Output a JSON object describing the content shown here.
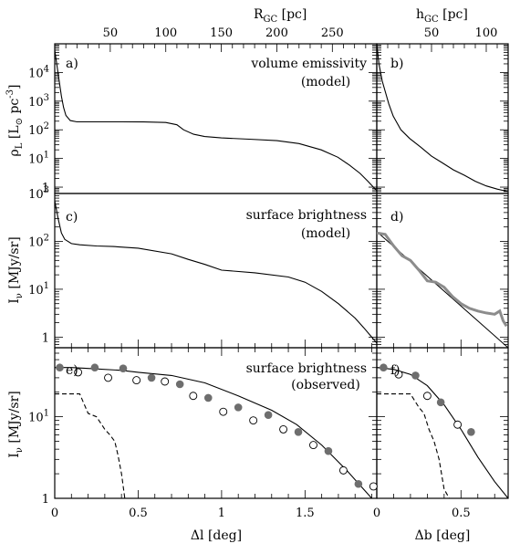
{
  "colors": {
    "line": "#000000",
    "model_gray": "#8c8c8c",
    "filled_marker": "#6e6e6e",
    "open_marker": "#ffffff"
  },
  "chart_data": [
    {
      "panel": "a",
      "type": "line",
      "title": "volume emissivity",
      "subtitle": "(model)",
      "ylabel": "ρL [L⊙ pc⁻³]",
      "yscale": "log",
      "ylim": [
        0.6,
        100000
      ],
      "yticks": [
        1,
        10,
        100,
        1000,
        10000
      ],
      "yticklabels": [
        "1",
        "10¹",
        "10²",
        "10³",
        "10⁴"
      ],
      "xlabel_top": "RGC [pc]",
      "xlim_top": [
        0,
        290
      ],
      "xticks_top": [
        50,
        100,
        150,
        200,
        250
      ],
      "series": [
        {
          "x": [
            0.0,
            2,
            4,
            6,
            8,
            10,
            14,
            20,
            30,
            40,
            60,
            80,
            100,
            110,
            116,
            125,
            135,
            150,
            175,
            200,
            220,
            240,
            255,
            265,
            275,
            282,
            290
          ],
          "y": [
            60000,
            18000,
            5000,
            1500,
            600,
            320,
            210,
            190,
            190,
            190,
            190,
            188,
            180,
            150,
            100,
            70,
            58,
            52,
            47,
            42,
            33,
            20,
            11,
            6,
            3,
            1.6,
            0.75
          ]
        }
      ]
    },
    {
      "panel": "b",
      "type": "line",
      "yscale": "log",
      "ylim": [
        0.6,
        100000
      ],
      "xlabel_top": "hGC [pc]",
      "xlim_top": [
        0,
        120
      ],
      "xticks_top": [
        50,
        100
      ],
      "series": [
        {
          "x": [
            0,
            2,
            5,
            8,
            11,
            15,
            22,
            30,
            40,
            50,
            60,
            70,
            80,
            90,
            100,
            110,
            120
          ],
          "y": [
            100000,
            20000,
            5000,
            2000,
            800,
            300,
            100,
            50,
            25,
            12,
            7,
            4,
            2.6,
            1.6,
            1.1,
            0.85,
            0.7
          ]
        }
      ]
    },
    {
      "panel": "c",
      "type": "line",
      "title": "surface brightness",
      "subtitle": "(model)",
      "ylabel": "Iν [MJy/sr]",
      "yscale": "log",
      "ylim": [
        0.6,
        1000
      ],
      "yticks": [
        1,
        10,
        100,
        1000
      ],
      "yticklabels": [
        "1",
        "10¹",
        "10²",
        "10³"
      ],
      "series": [
        {
          "x": [
            0.0,
            0.02,
            0.04,
            0.06,
            0.1,
            0.15,
            0.25,
            0.35,
            0.5,
            0.7,
            0.8,
            0.9,
            1.0,
            1.2,
            1.4,
            1.5,
            1.6,
            1.7,
            1.8,
            1.85,
            1.9,
            1.95
          ],
          "y": [
            700,
            300,
            150,
            110,
            90,
            85,
            80,
            78,
            72,
            55,
            42,
            33,
            25,
            22,
            18,
            14,
            9,
            5,
            2.5,
            1.6,
            1.0,
            0.62
          ]
        }
      ]
    },
    {
      "panel": "d",
      "type": "line",
      "yscale": "log",
      "ylim": [
        0.6,
        1000
      ],
      "series": [
        {
          "x": [
            0,
            0.78
          ],
          "y": [
            160,
            0.6
          ]
        },
        {
          "x": [
            0,
            0.05,
            0.1,
            0.15,
            0.2,
            0.25,
            0.3,
            0.35,
            0.4,
            0.45,
            0.5,
            0.55,
            0.6,
            0.65,
            0.7,
            0.73,
            0.75,
            0.77
          ],
          "y": [
            150,
            140,
            80,
            50,
            40,
            25,
            15,
            14,
            11,
            7,
            5,
            4,
            3.5,
            3.2,
            3,
            3.5,
            2.2,
            1.7
          ]
        }
      ]
    },
    {
      "panel": "e",
      "type": "scatter",
      "title": "surface brightness",
      "subtitle": "(observed)",
      "ylabel": "Iν [MJy/sr]",
      "xlabel": "Δl [deg]",
      "yscale": "log",
      "ylim": [
        1,
        70
      ],
      "yticks": [
        1,
        10
      ],
      "yticklabels": [
        "1",
        "10¹"
      ],
      "xlim": [
        0,
        1.93
      ],
      "xticks": [
        0,
        0.5,
        1,
        1.5
      ],
      "xticklabels": [
        "0",
        "0.5",
        "1",
        "1.5"
      ],
      "series": [
        {
          "x": [
            0.0,
            0.1,
            0.2,
            0.4,
            0.5,
            0.7,
            0.9,
            1.1,
            1.3,
            1.45,
            1.6,
            1.75,
            1.9
          ],
          "y": [
            40,
            40,
            39,
            37,
            35,
            32,
            26,
            18,
            12,
            8,
            4.5,
            2.2,
            1.0
          ]
        },
        {
          "x": [
            0.0,
            0.1,
            0.15,
            0.2,
            0.25,
            0.3,
            0.33,
            0.36,
            0.38,
            0.4,
            0.42,
            0.6
          ],
          "y": [
            19,
            19,
            19,
            11,
            10,
            7,
            6,
            5,
            3.3,
            2,
            1,
            1
          ]
        },
        {
          "x": [
            0.03,
            0.24,
            0.41,
            0.58,
            0.75,
            0.92,
            1.1,
            1.28,
            1.46,
            1.64,
            1.82
          ],
          "y": [
            40,
            40,
            39,
            30,
            25,
            17,
            13,
            10.5,
            6.5,
            3.8,
            1.5
          ]
        },
        {
          "x": [
            0.14,
            0.32,
            0.49,
            0.66,
            0.83,
            1.01,
            1.19,
            1.37,
            1.55,
            1.73,
            1.91
          ],
          "y": [
            35,
            30,
            28,
            27,
            18,
            11.5,
            9,
            7,
            4.5,
            2.2,
            1.4
          ]
        }
      ]
    },
    {
      "panel": "f",
      "type": "scatter",
      "xlabel": "Δb [deg]",
      "yscale": "log",
      "ylim": [
        1,
        70
      ],
      "xlim": [
        0,
        0.78
      ],
      "xticks": [
        0,
        0.5
      ],
      "xticklabels": [
        "0",
        "0.5"
      ],
      "series": [
        {
          "x": [
            0.0,
            0.1,
            0.2,
            0.3,
            0.4,
            0.5,
            0.6,
            0.7,
            0.78
          ],
          "y": [
            40,
            38,
            33,
            24,
            14,
            7,
            3.2,
            1.6,
            1.0
          ]
        },
        {
          "x": [
            0.0,
            0.14,
            0.2,
            0.25,
            0.28,
            0.31,
            0.34,
            0.37,
            0.4,
            0.43,
            0.5
          ],
          "y": [
            19,
            19,
            19,
            13,
            11,
            7,
            5,
            3,
            1.3,
            1,
            1
          ]
        },
        {
          "x": [
            0.04,
            0.23,
            0.38,
            0.56
          ],
          "y": [
            40,
            32,
            15,
            6.5
          ]
        },
        {
          "x": [
            0.13,
            0.3,
            0.48
          ],
          "y": [
            33,
            18,
            8
          ]
        }
      ]
    }
  ],
  "labels": {
    "panel_a": "a)",
    "panel_b": "b)",
    "panel_c": "c)",
    "panel_d": "d)",
    "panel_e": "e)",
    "panel_f": "f)",
    "top_a": "R",
    "top_a_sub": "GC",
    "top_a_unit": " [pc]",
    "top_b": "h",
    "top_b_sub": "GC",
    "top_b_unit": " [pc]",
    "ylabel_a_main": "ρ",
    "ylabel_a_sub": "L",
    "ylabel_a_unit1": " [L",
    "ylabel_a_sun": "⊙",
    "ylabel_a_unit2": " pc",
    "ylabel_a_exp": "-3",
    "ylabel_a_close": "]",
    "ylabel_c_main": "I",
    "ylabel_c_sub": "ν",
    "ylabel_c_unit": " [MJy/sr]",
    "ylabel_e_main": "I",
    "ylabel_e_sub": "ν",
    "ylabel_e_unit": " [MJy/sr]",
    "xlabel_e": "Δl [deg]",
    "xlabel_f": "Δb [deg]"
  }
}
